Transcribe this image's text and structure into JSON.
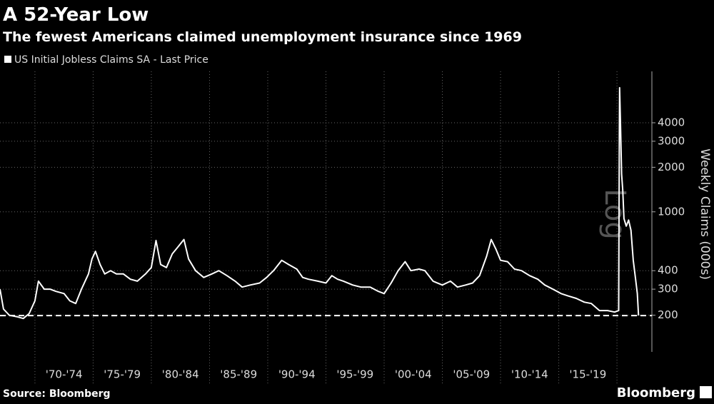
{
  "chart_data": {
    "type": "line",
    "title": "A 52-Year Low",
    "subtitle": "The fewest Americans claimed unemployment insurance since 1969",
    "source": "Source: Bloomberg",
    "brand": "Bloomberg",
    "y_label": "Weekly Claims (000s)",
    "annotation": "Log",
    "log_scale": true,
    "grid": true,
    "reference_line": 199,
    "xlim": [
      1967,
      2023
    ],
    "xticks": [
      1970,
      1975,
      1980,
      1985,
      1990,
      1995,
      2000,
      2005,
      2010,
      2015,
      2020
    ],
    "x_band_labels": [
      "'70-'74",
      "'75-'79",
      "'80-'84",
      "'85-'89",
      "'90-'94",
      "'95-'99",
      "'00-'04",
      "'05-'09",
      "'10-'14",
      "'15-'19"
    ],
    "ylim": [
      113,
      8900
    ],
    "yticks": [
      200,
      300,
      400,
      1000,
      2000,
      3000,
      4000
    ],
    "series": [
      {
        "name": "US Initial Jobless Claims SA - Last Price",
        "color": "#ffffff",
        "x": [
          1967.0,
          1967.3,
          1967.8,
          1968.5,
          1969.0,
          1969.5,
          1970.0,
          1970.3,
          1970.8,
          1971.3,
          1971.8,
          1972.5,
          1973.0,
          1973.5,
          1974.0,
          1974.6,
          1974.9,
          1975.2,
          1975.6,
          1976.0,
          1976.5,
          1977.0,
          1977.6,
          1978.2,
          1978.8,
          1979.5,
          1980.0,
          1980.4,
          1980.8,
          1981.3,
          1981.8,
          1982.3,
          1982.8,
          1983.2,
          1983.8,
          1984.5,
          1985.2,
          1985.8,
          1986.5,
          1987.2,
          1987.8,
          1988.5,
          1989.3,
          1989.9,
          1990.5,
          1991.2,
          1991.8,
          1992.5,
          1993.0,
          1993.5,
          1994.3,
          1995.0,
          1995.5,
          1996.0,
          1996.5,
          1997.3,
          1998.0,
          1998.8,
          1999.5,
          2000.0,
          2000.6,
          2001.2,
          2001.8,
          2002.3,
          2003.0,
          2003.5,
          2004.2,
          2005.0,
          2005.7,
          2006.3,
          2007.0,
          2007.6,
          2008.2,
          2008.8,
          2009.2,
          2009.6,
          2010.0,
          2010.6,
          2011.2,
          2011.8,
          2012.5,
          2013.2,
          2013.8,
          2014.5,
          2015.2,
          2015.8,
          2016.5,
          2017.2,
          2017.8,
          2018.5,
          2019.2,
          2019.8,
          2020.15,
          2020.2,
          2020.23,
          2020.3,
          2020.4,
          2020.5,
          2020.6,
          2020.8,
          2021.0,
          2021.2,
          2021.4,
          2021.6,
          2021.75,
          2021.85
        ],
        "values": [
          300,
          220,
          200,
          195,
          190,
          205,
          250,
          340,
          300,
          300,
          290,
          280,
          250,
          240,
          300,
          380,
          480,
          540,
          440,
          380,
          400,
          380,
          380,
          350,
          340,
          380,
          420,
          640,
          440,
          420,
          520,
          580,
          650,
          480,
          400,
          360,
          380,
          400,
          370,
          340,
          310,
          320,
          330,
          360,
          400,
          470,
          440,
          410,
          360,
          350,
          340,
          330,
          370,
          350,
          340,
          320,
          310,
          310,
          290,
          280,
          330,
          400,
          460,
          400,
          410,
          400,
          340,
          320,
          340,
          310,
          320,
          330,
          370,
          500,
          650,
          560,
          470,
          460,
          410,
          400,
          370,
          350,
          320,
          300,
          280,
          270,
          260,
          245,
          240,
          215,
          215,
          210,
          215,
          3300,
          6900,
          4000,
          1800,
          1400,
          900,
          800,
          880,
          750,
          470,
          350,
          280,
          199
        ]
      }
    ]
  }
}
